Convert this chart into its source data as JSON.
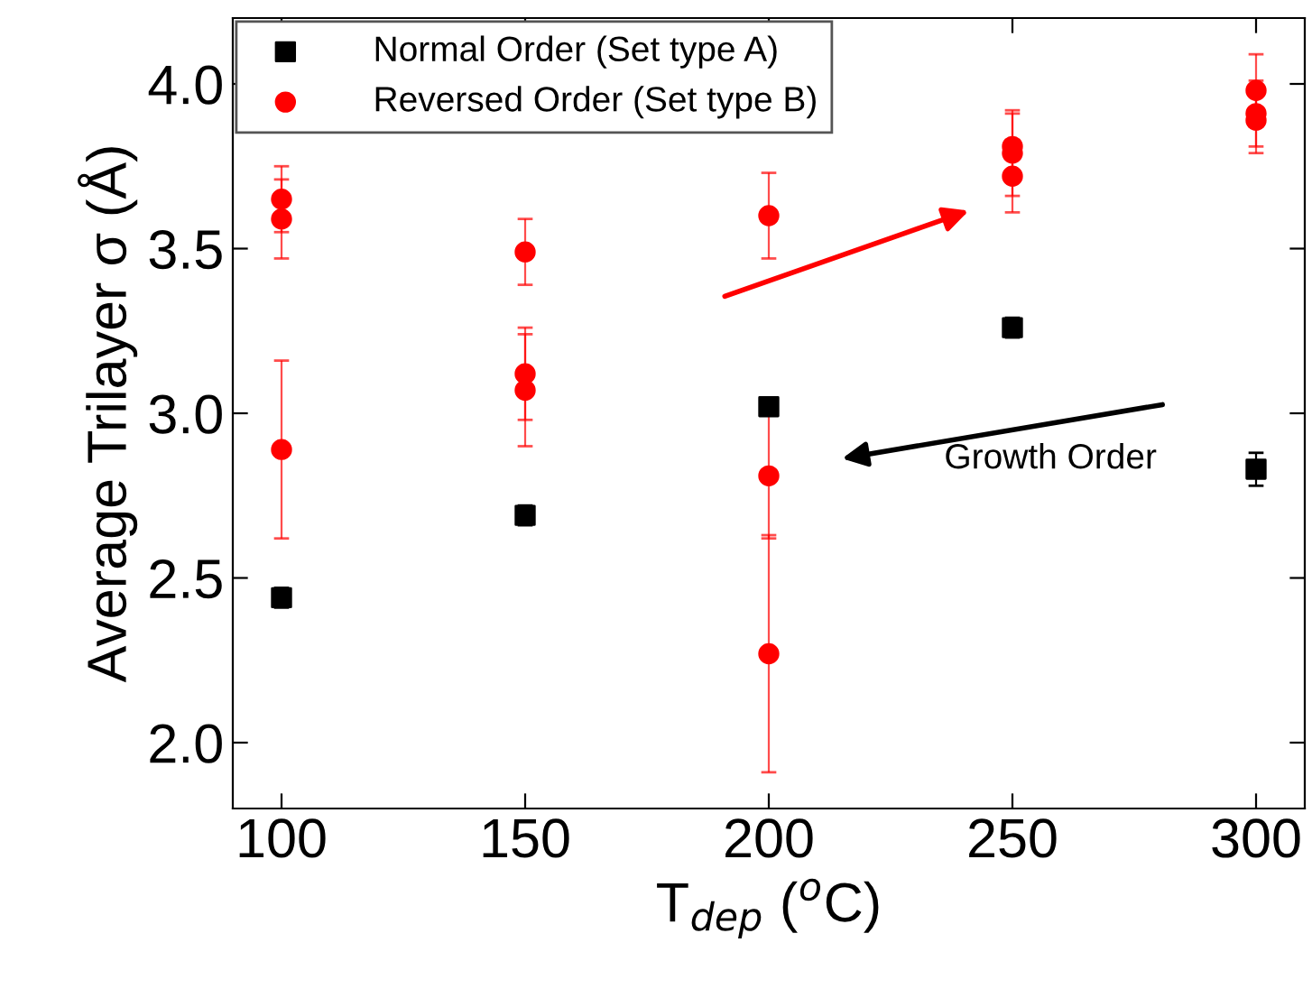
{
  "chart_data": {
    "type": "scatter",
    "xlabel": "T$_{dep}$ ($^{o}$C)",
    "ylabel": "Average Trilayer σ (Å)",
    "xlim": [
      90,
      310
    ],
    "xticks": [
      100,
      150,
      200,
      250,
      300
    ],
    "ylim": [
      1.8,
      4.2
    ],
    "yticks": [
      {
        "value": 2.0,
        "label": "2.0"
      },
      {
        "value": 2.5,
        "label": "2.5"
      },
      {
        "value": 3.0,
        "label": "3.0"
      },
      {
        "value": 3.5,
        "label": "3.5"
      },
      {
        "value": 4.0,
        "label": "4.0"
      }
    ],
    "series": [
      {
        "name": "Normal Order (Set type A)",
        "color": "#000000",
        "marker": "square",
        "x": [
          100,
          150,
          200,
          250,
          300
        ],
        "values": [
          2.44,
          2.69,
          3.02,
          3.26,
          2.83
        ],
        "errors": [
          0.03,
          0.03,
          0.02,
          0.03,
          0.05
        ]
      },
      {
        "name": "Reversed Order (Set type B)",
        "color": "#ff0000",
        "marker": "circle",
        "x": [
          100,
          100,
          100,
          150,
          150,
          150,
          200,
          200,
          200,
          250,
          250,
          250,
          300,
          300,
          300
        ],
        "values": [
          3.65,
          3.59,
          2.89,
          3.49,
          3.12,
          3.07,
          3.6,
          2.81,
          2.27,
          3.81,
          3.79,
          3.72,
          3.98,
          3.91,
          3.89
        ],
        "errors": [
          0.1,
          0.12,
          0.27,
          0.1,
          0.14,
          0.17,
          0.13,
          0.19,
          0.36,
          0.1,
          0.13,
          0.11,
          0.11,
          0.1,
          0.1
        ]
      }
    ],
    "annotations": [
      "Growth Order"
    ],
    "legend": "top left",
    "grid": false
  }
}
